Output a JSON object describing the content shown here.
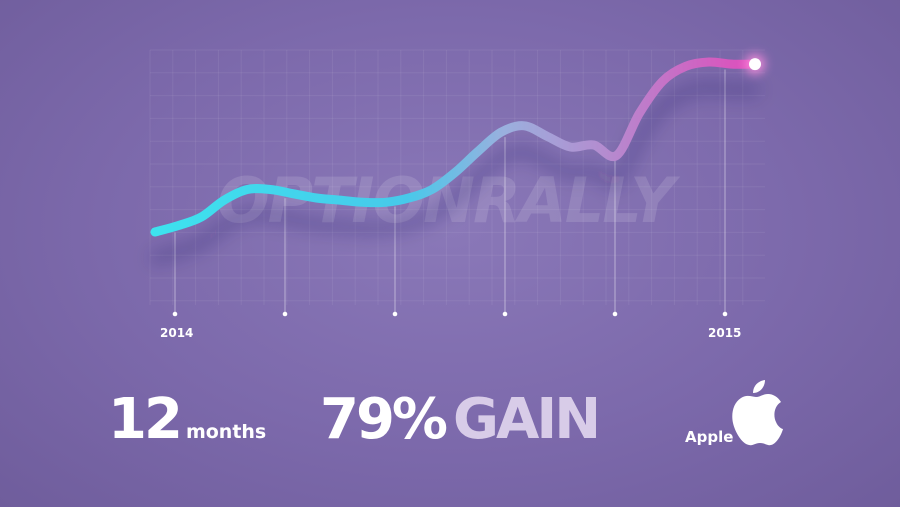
{
  "brand": {
    "watermark": "OPTIONRALLY"
  },
  "chart_data": {
    "type": "line",
    "x_labels": {
      "start": "2014",
      "end": "2015"
    },
    "x": [
      0,
      0.5,
      1,
      1.5,
      2,
      2.5,
      3,
      3.5,
      4,
      4.5,
      5,
      5.5,
      6,
      6.5,
      7,
      7.5,
      8,
      8.5,
      9,
      9.5,
      10,
      10.5,
      11,
      11.5,
      12,
      12.5,
      13
    ],
    "values": [
      22,
      25,
      29,
      37,
      42,
      42,
      40,
      38,
      37,
      36,
      36,
      38,
      42,
      50,
      60,
      69,
      72,
      67,
      62,
      63,
      58,
      78,
      93,
      100,
      102,
      101,
      101
    ],
    "ylim": [
      0,
      110
    ],
    "xlim": [
      0,
      13
    ],
    "grid": true,
    "colors": {
      "start": "#3de3ee",
      "end": "#e04aba",
      "point": "#ffffff"
    }
  },
  "stats": {
    "duration_value": "12",
    "duration_unit": "months",
    "gain_value": "79%",
    "gain_word": "GAIN",
    "company": "Apple"
  }
}
